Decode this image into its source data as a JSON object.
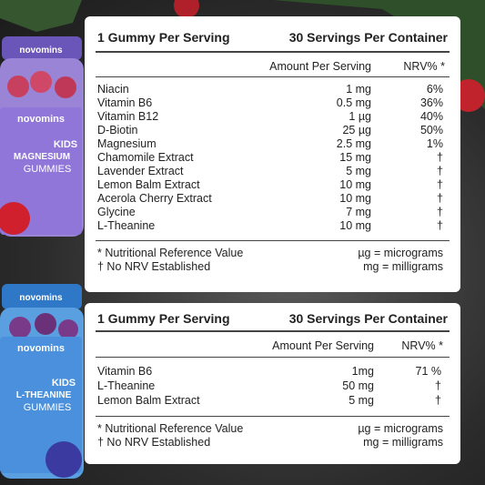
{
  "panels": [
    {
      "header": [
        "1 Gummy Per Serving",
        "30 Servings Per Container"
      ],
      "columns": [
        "Amount Per Serving",
        "NRV% *"
      ],
      "rows": [
        [
          "Niacin",
          "1 mg",
          "6%"
        ],
        [
          "Vitamin B6",
          "0.5 mg",
          "36%"
        ],
        [
          "Vitamin B12",
          "1 µg",
          "40%"
        ],
        [
          "D-Biotin",
          "25 µg",
          "50%"
        ],
        [
          "Magnesium",
          "2.5 mg",
          "1%"
        ],
        [
          "Chamomile Extract",
          "15 mg",
          "†"
        ],
        [
          "Lavender Extract",
          "5 mg",
          "†"
        ],
        [
          "Lemon Balm Extract",
          "10 mg",
          "†"
        ],
        [
          "Acerola Cherry Extract",
          "10 mg",
          "†"
        ],
        [
          "Glycine",
          "7 mg",
          "†"
        ],
        [
          "L-Theanine",
          "10 mg",
          "†"
        ]
      ],
      "footnotes": [
        [
          "* Nutritional Reference Value",
          "µg = micrograms"
        ],
        [
          "† No NRV Established",
          "mg = milligrams"
        ]
      ]
    },
    {
      "header": [
        "1 Gummy Per Serving",
        "30 Servings Per Container"
      ],
      "columns": [
        "Amount Per Serving",
        "NRV% *"
      ],
      "rows": [
        [
          "Vitamin B6",
          "1mg",
          "71 %"
        ],
        [
          "L-Theanine",
          "50 mg",
          "†"
        ],
        [
          "Lemon Balm Extract",
          "5 mg",
          "†"
        ]
      ],
      "footnotes": [
        [
          "* Nutritional Reference Value",
          "µg = micrograms"
        ],
        [
          "† No NRV Established",
          "mg = milligrams"
        ]
      ]
    }
  ],
  "products": [
    {
      "brand": "novomins",
      "kind": "KIDS",
      "name": "MAGNESIUM",
      "form": "GUMMIES"
    },
    {
      "brand": "novomins",
      "kind": "KIDS",
      "name": "L-THEANINE",
      "form": "GUMMIES"
    }
  ]
}
